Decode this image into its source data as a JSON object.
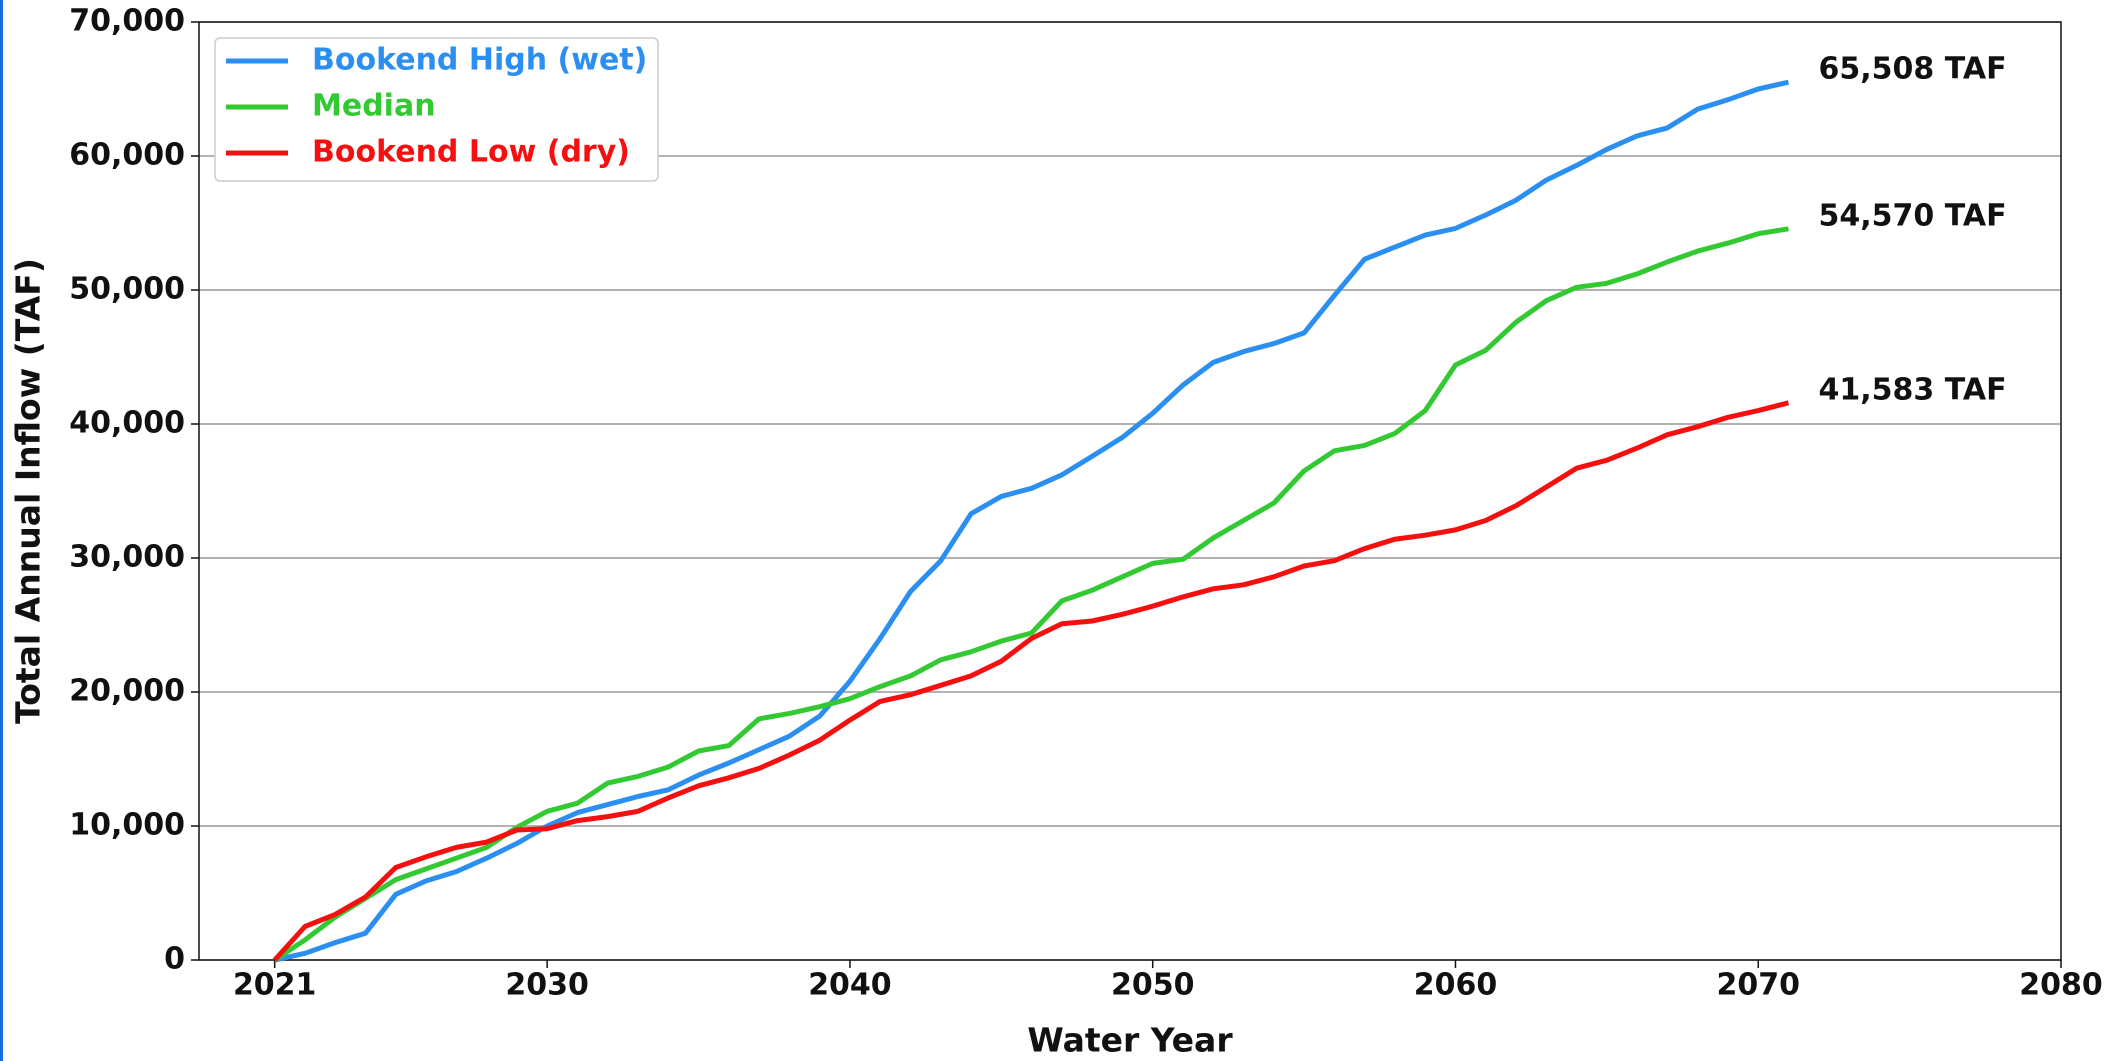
{
  "chart_data": {
    "type": "line",
    "xlabel": "Water Year",
    "ylabel": "Total Annual Inflow (TAF)",
    "x": [
      2021,
      2022,
      2023,
      2024,
      2025,
      2026,
      2027,
      2028,
      2029,
      2030,
      2031,
      2032,
      2033,
      2034,
      2035,
      2036,
      2037,
      2038,
      2039,
      2040,
      2041,
      2042,
      2043,
      2044,
      2045,
      2046,
      2047,
      2048,
      2049,
      2050,
      2051,
      2052,
      2053,
      2054,
      2055,
      2056,
      2057,
      2058,
      2059,
      2060,
      2061,
      2062,
      2063,
      2064,
      2065,
      2066,
      2067,
      2068,
      2069,
      2070,
      2071
    ],
    "series": [
      {
        "name": "Bookend High (wet)",
        "color": "#2a8ff0",
        "values": [
          0,
          500,
          1300,
          2000,
          4900,
          5900,
          6600,
          7600,
          8700,
          10000,
          11000,
          11600,
          12200,
          12700,
          13800,
          14700,
          15700,
          16700,
          18200,
          20800,
          24000,
          27500,
          29800,
          33300,
          34600,
          35200,
          36200,
          37600,
          39000,
          40800,
          42900,
          44600,
          45400,
          46000,
          46800,
          49600,
          52300,
          53200,
          54100,
          54600,
          55600,
          56700,
          58200,
          59300,
          60500,
          61500,
          62100,
          63500,
          64200,
          65000,
          65508
        ]
      },
      {
        "name": "Median",
        "color": "#33c933",
        "values": [
          0,
          1500,
          3200,
          4600,
          6000,
          6800,
          7600,
          8400,
          9900,
          11100,
          11700,
          13200,
          13700,
          14400,
          15600,
          16000,
          18000,
          18400,
          18900,
          19500,
          20400,
          21200,
          22400,
          23000,
          23800,
          24400,
          26800,
          27600,
          28600,
          29600,
          29900,
          31500,
          32800,
          34100,
          36500,
          38000,
          38400,
          39300,
          41000,
          44400,
          45500,
          47600,
          49200,
          50200,
          50500,
          51200,
          52100,
          52900,
          53500,
          54200,
          54570
        ]
      },
      {
        "name": "Bookend Low (dry)",
        "color": "#f50f0f",
        "values": [
          0,
          2500,
          3400,
          4700,
          6900,
          7700,
          8400,
          8800,
          9700,
          9800,
          10400,
          10700,
          11100,
          12100,
          13000,
          13600,
          14300,
          15300,
          16400,
          17900,
          19300,
          19800,
          20500,
          21200,
          22300,
          24000,
          25100,
          25300,
          25800,
          26400,
          27100,
          27700,
          28000,
          28600,
          29400,
          29800,
          30700,
          31400,
          31700,
          32100,
          32800,
          33900,
          35300,
          36700,
          37300,
          38200,
          39200,
          39800,
          40500,
          41000,
          41583
        ]
      }
    ],
    "annotations": [
      {
        "text": "65,508 TAF",
        "x": 2071,
        "y": 65508
      },
      {
        "text": "54,570 TAF",
        "x": 2071,
        "y": 54570
      },
      {
        "text": "41,583 TAF",
        "x": 2071,
        "y": 41583
      }
    ],
    "xlim": [
      2018.5,
      2080
    ],
    "xticks": [
      2021,
      2030,
      2040,
      2050,
      2060,
      2070,
      2080
    ],
    "ylim": [
      0,
      70000
    ],
    "yticks": [
      0,
      {
        "value": 10000,
        "label": "10,000"
      },
      {
        "value": 20000,
        "label": "20,000"
      },
      {
        "value": 30000,
        "label": "30,000"
      },
      {
        "value": 40000,
        "label": "40,000"
      },
      {
        "value": 50000,
        "label": "50,000"
      },
      {
        "value": 60000,
        "label": "60,000"
      },
      {
        "value": 70000,
        "label": "70,000"
      }
    ],
    "grid": true,
    "legend": "upper left"
  }
}
